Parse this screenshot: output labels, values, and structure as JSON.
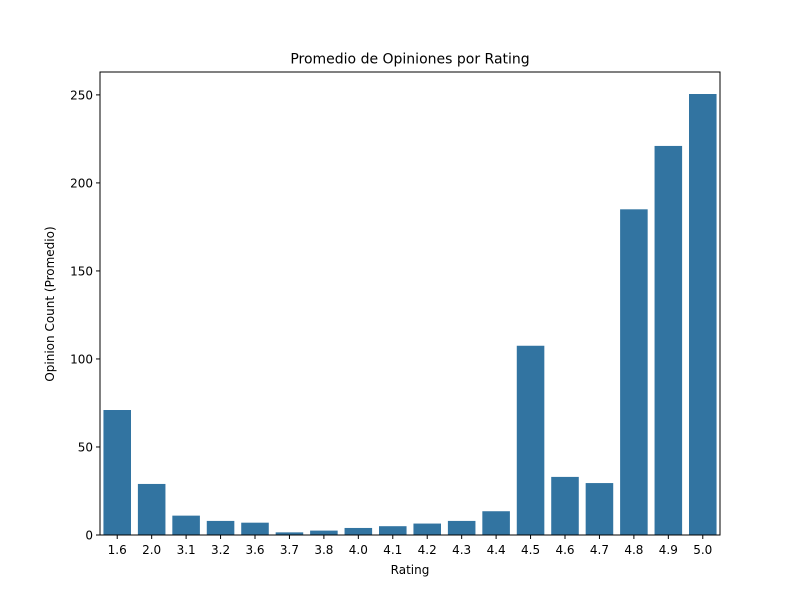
{
  "chart_data": {
    "type": "bar",
    "title": "Promedio de Opiniones por Rating",
    "xlabel": "Rating",
    "ylabel": "Opinion Count (Promedio)",
    "categories": [
      "1.6",
      "2.0",
      "3.1",
      "3.2",
      "3.6",
      "3.7",
      "3.8",
      "4.0",
      "4.1",
      "4.2",
      "4.3",
      "4.4",
      "4.5",
      "4.6",
      "4.7",
      "4.8",
      "4.9",
      "5.0"
    ],
    "values": [
      71,
      29,
      11,
      8,
      7,
      1.5,
      2.5,
      4,
      5,
      6.5,
      8,
      13.5,
      107.5,
      33,
      29.5,
      185,
      221,
      250.5
    ],
    "ylim": [
      0,
      263
    ],
    "yticks": [
      0,
      50,
      100,
      150,
      200,
      250
    ],
    "grid": false,
    "bar_color": "#3274a1"
  }
}
